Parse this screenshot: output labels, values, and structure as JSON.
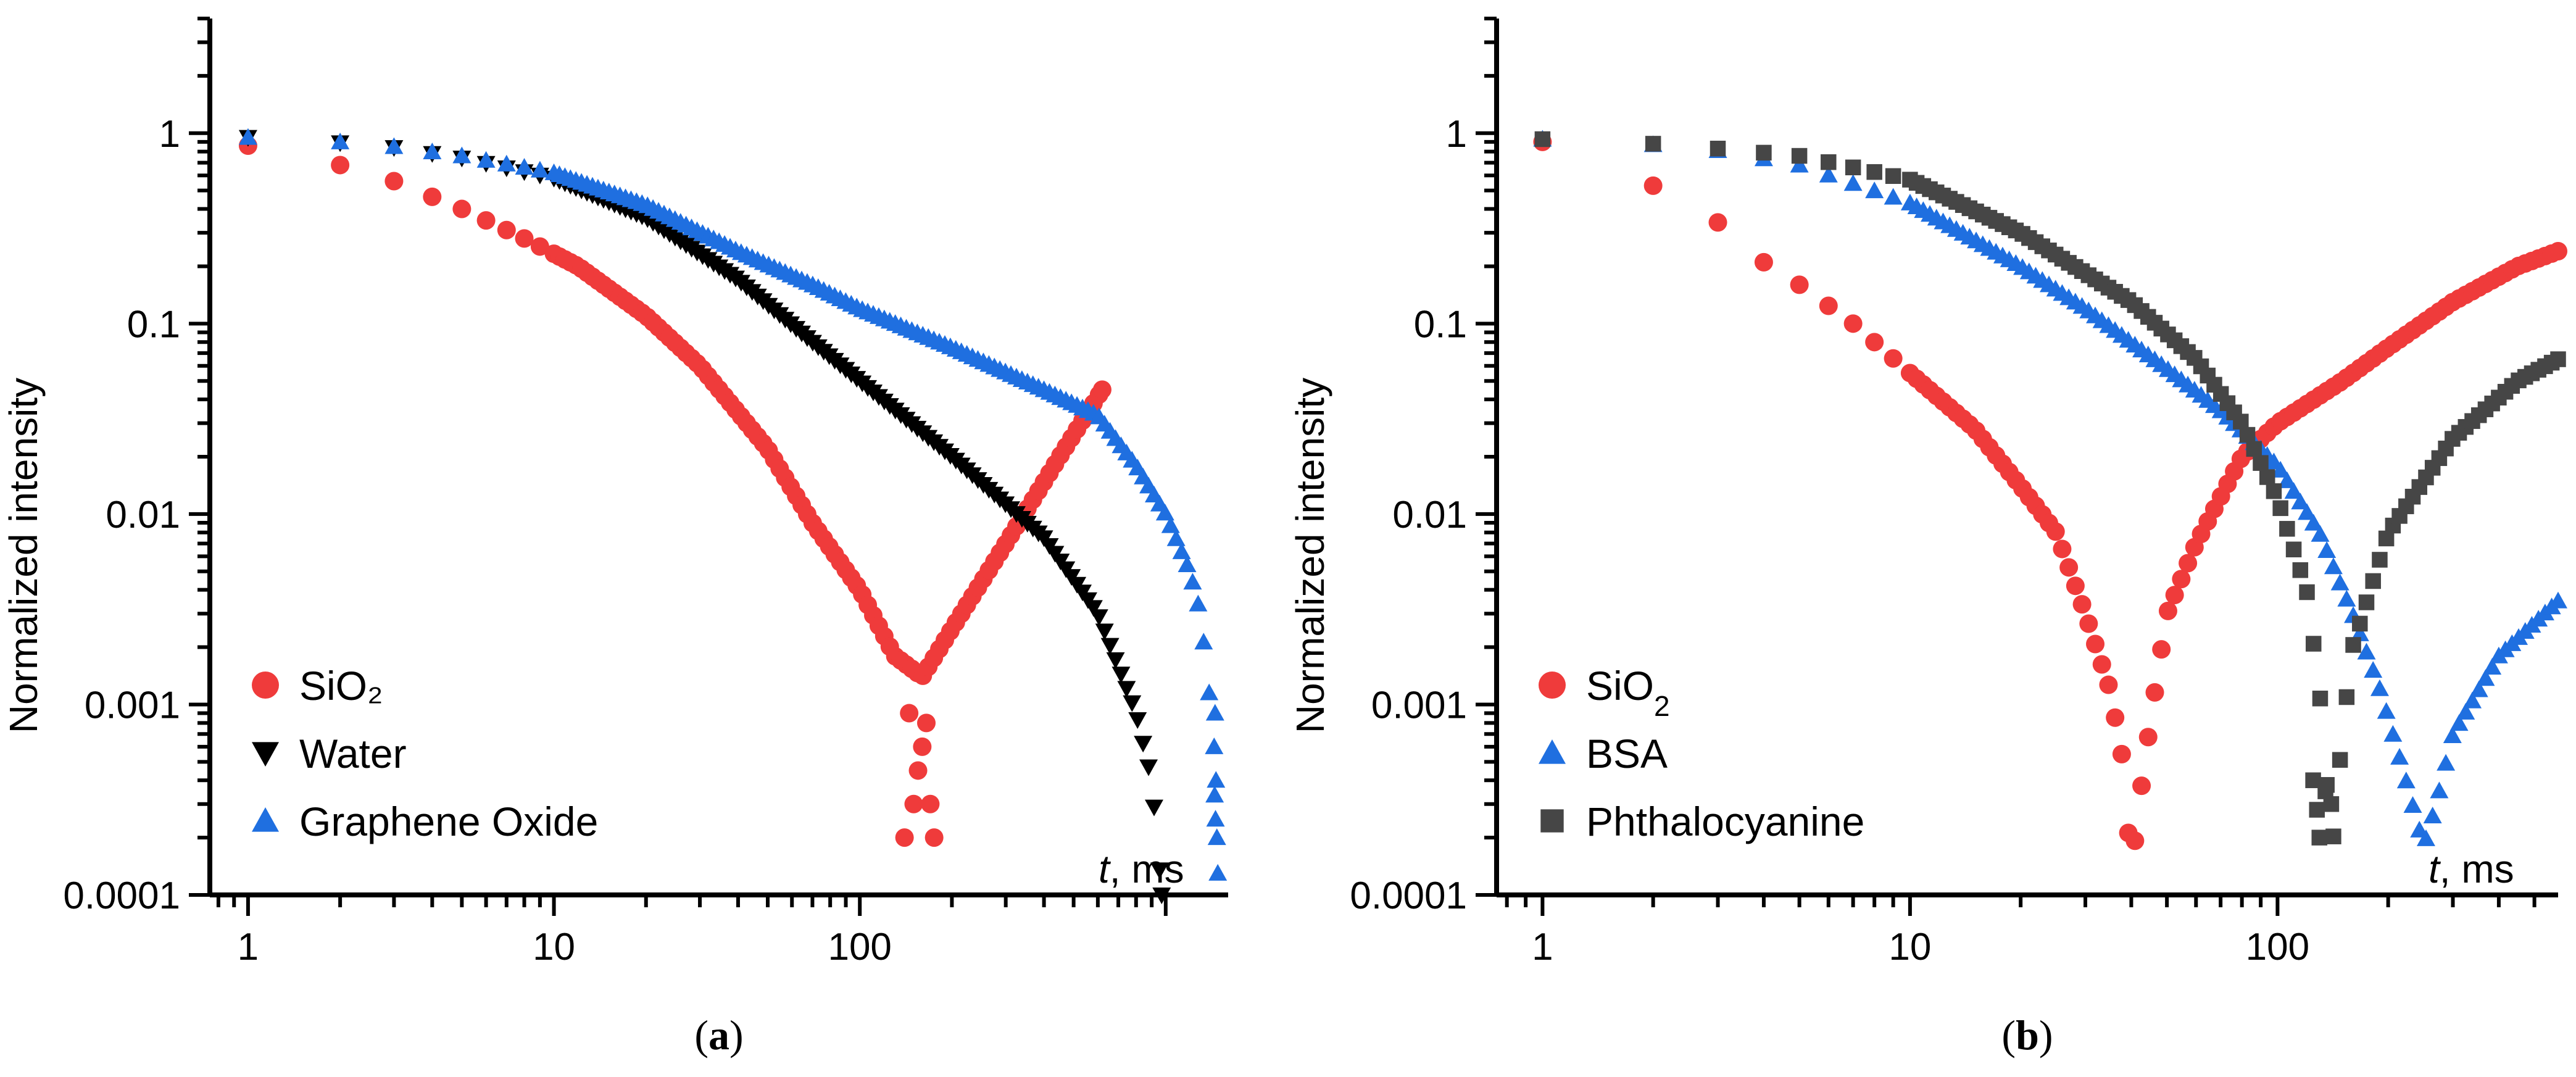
{
  "chart_data": [
    {
      "type": "scatter",
      "panel": "a",
      "caption": {
        "open": "(",
        "letter": "a",
        "close": ")"
      },
      "xscale": "log",
      "yscale": "log",
      "xlim": [
        0.75,
        1600
      ],
      "ylim": [
        0.0001,
        4
      ],
      "ylabel": "Normalized intensity",
      "xlabel": {
        "var": "t",
        "unit": ", ms"
      },
      "x_ticks": [
        {
          "value": 1,
          "label": "1"
        },
        {
          "value": 10,
          "label": "10"
        },
        {
          "value": 100,
          "label": "100"
        }
      ],
      "y_ticks": [
        {
          "value": 1,
          "label": "1"
        },
        {
          "value": 0.1,
          "label": "0.1"
        },
        {
          "value": 0.01,
          "label": "0.01"
        },
        {
          "value": 0.001,
          "label": "0.001"
        },
        {
          "value": 0.0001,
          "label": "0.0001"
        }
      ],
      "legend_position": "bottom-left",
      "series": [
        {
          "name": "SiO₂",
          "marker": "circle",
          "color": "#ef3b3b",
          "curve": [
            [
              1,
              0.86
            ],
            [
              2,
              0.68
            ],
            [
              3,
              0.56
            ],
            [
              5,
              0.4
            ],
            [
              8,
              0.28
            ],
            [
              12,
              0.2
            ],
            [
              20,
              0.11
            ],
            [
              30,
              0.06
            ],
            [
              50,
              0.022
            ],
            [
              70,
              0.009
            ],
            [
              100,
              0.004
            ],
            [
              130,
              0.0018
            ],
            [
              160,
              0.0014
            ],
            [
              200,
              0.0025
            ],
            [
              300,
              0.007
            ],
            [
              450,
              0.02
            ],
            [
              620,
              0.045
            ]
          ],
          "scatter_points": [
            [
              140,
              0.0002
            ],
            [
              150,
              0.0003
            ],
            [
              155,
              0.00045
            ],
            [
              160,
              0.0006
            ],
            [
              170,
              0.0003
            ],
            [
              175,
              0.0002
            ],
            [
              145,
              0.0009
            ],
            [
              165,
              0.0008
            ]
          ]
        },
        {
          "name": "Water",
          "marker": "triangle-down",
          "color": "#000000",
          "curve": [
            [
              1,
              0.95
            ],
            [
              2,
              0.89
            ],
            [
              3,
              0.84
            ],
            [
              5,
              0.74
            ],
            [
              10,
              0.58
            ],
            [
              20,
              0.36
            ],
            [
              40,
              0.17
            ],
            [
              70,
              0.08
            ],
            [
              100,
              0.05
            ],
            [
              200,
              0.02
            ],
            [
              400,
              0.0075
            ],
            [
              600,
              0.003
            ],
            [
              800,
              0.0009
            ],
            [
              900,
              0.0004
            ],
            [
              950,
              0.00015
            ],
            [
              970,
              0.0001
            ]
          ]
        },
        {
          "name": "Graphene Oxide",
          "marker": "triangle-up",
          "color": "#1f6fe0",
          "curve": [
            [
              1,
              0.95
            ],
            [
              2,
              0.9
            ],
            [
              3,
              0.85
            ],
            [
              5,
              0.76
            ],
            [
              10,
              0.62
            ],
            [
              20,
              0.42
            ],
            [
              40,
              0.24
            ],
            [
              70,
              0.16
            ],
            [
              100,
              0.12
            ],
            [
              200,
              0.075
            ],
            [
              400,
              0.045
            ],
            [
              600,
              0.033
            ],
            [
              800,
              0.018
            ],
            [
              1000,
              0.01
            ],
            [
              1200,
              0.005
            ],
            [
              1300,
              0.003
            ],
            [
              1400,
              0.001
            ],
            [
              1450,
              0.0003
            ],
            [
              1480,
              0.00013
            ]
          ],
          "scatter_points": [
            [
              1450,
              0.0009
            ],
            [
              1460,
              0.0004
            ],
            [
              1440,
              0.0006
            ],
            [
              1470,
              0.0002
            ],
            [
              1455,
              0.00025
            ]
          ]
        }
      ]
    },
    {
      "type": "scatter",
      "panel": "b",
      "caption": {
        "open": "(",
        "letter": "b",
        "close": ")"
      },
      "xscale": "log",
      "yscale": "log",
      "xlim": [
        0.75,
        580
      ],
      "ylim": [
        0.0001,
        4
      ],
      "ylabel": "Normalized intensity",
      "xlabel": {
        "var": "t",
        "unit": ", ms"
      },
      "x_ticks": [
        {
          "value": 1,
          "label": "1"
        },
        {
          "value": 10,
          "label": "10"
        },
        {
          "value": 100,
          "label": "100"
        }
      ],
      "y_ticks": [
        {
          "value": 1,
          "label": "1"
        },
        {
          "value": 0.1,
          "label": "0.1"
        },
        {
          "value": 0.01,
          "label": "0.01"
        },
        {
          "value": 0.001,
          "label": "0.001"
        },
        {
          "value": 0.0001,
          "label": "0.0001"
        }
      ],
      "legend_position": "bottom-left",
      "series": [
        {
          "name": "SiO2",
          "name_base": "SiO",
          "name_sub": "2",
          "marker": "circle",
          "color": "#ef3b3b",
          "curve": [
            [
              1,
              0.9
            ],
            [
              2,
              0.53
            ],
            [
              3,
              0.34
            ],
            [
              4,
              0.21
            ],
            [
              5,
              0.16
            ],
            [
              7,
              0.1
            ],
            [
              10,
              0.055
            ],
            [
              15,
              0.028
            ],
            [
              20,
              0.014
            ],
            [
              25,
              0.008
            ],
            [
              30,
              0.003
            ],
            [
              35,
              0.0012
            ],
            [
              38,
              0.0005
            ],
            [
              40,
              0.00013
            ],
            [
              42,
              0.0003
            ],
            [
              45,
              0.0008
            ],
            [
              50,
              0.003
            ],
            [
              60,
              0.007
            ],
            [
              80,
              0.02
            ],
            [
              100,
              0.03
            ],
            [
              150,
              0.05
            ],
            [
              200,
              0.075
            ],
            [
              300,
              0.13
            ],
            [
              450,
              0.2
            ],
            [
              580,
              0.24
            ]
          ]
        },
        {
          "name": "BSA",
          "marker": "triangle-up",
          "color": "#1f6fe0",
          "curve": [
            [
              1,
              0.93
            ],
            [
              2,
              0.87
            ],
            [
              3,
              0.81
            ],
            [
              5,
              0.68
            ],
            [
              10,
              0.43
            ],
            [
              20,
              0.2
            ],
            [
              30,
              0.12
            ],
            [
              50,
              0.058
            ],
            [
              70,
              0.035
            ],
            [
              100,
              0.018
            ],
            [
              130,
              0.008
            ],
            [
              160,
              0.003
            ],
            [
              190,
              0.0012
            ],
            [
              220,
              0.00045
            ],
            [
              250,
              0.00018
            ],
            [
              270,
              0.0003
            ],
            [
              300,
              0.0007
            ],
            [
              400,
              0.0018
            ],
            [
              580,
              0.0035
            ]
          ]
        },
        {
          "name": "Phthalocyanine",
          "marker": "square",
          "color": "#464646",
          "curve": [
            [
              1,
              0.93
            ],
            [
              2,
              0.88
            ],
            [
              3,
              0.83
            ],
            [
              5,
              0.76
            ],
            [
              10,
              0.57
            ],
            [
              20,
              0.3
            ],
            [
              40,
              0.13
            ],
            [
              60,
              0.065
            ],
            [
              80,
              0.03
            ],
            [
              100,
              0.012
            ],
            [
              120,
              0.004
            ],
            [
              130,
              0.0012
            ],
            [
              135,
              0.0005
            ],
            [
              140,
              0.00015
            ],
            [
              150,
              0.0007
            ],
            [
              160,
              0.002
            ],
            [
              200,
              0.008
            ],
            [
              300,
              0.025
            ],
            [
              450,
              0.05
            ],
            [
              580,
              0.065
            ]
          ],
          "scatter_points": [
            [
              130,
              0.0002
            ],
            [
              128,
              0.00028
            ],
            [
              135,
              0.00035
            ],
            [
              140,
              0.0003
            ],
            [
              125,
              0.0004
            ]
          ]
        }
      ]
    }
  ]
}
